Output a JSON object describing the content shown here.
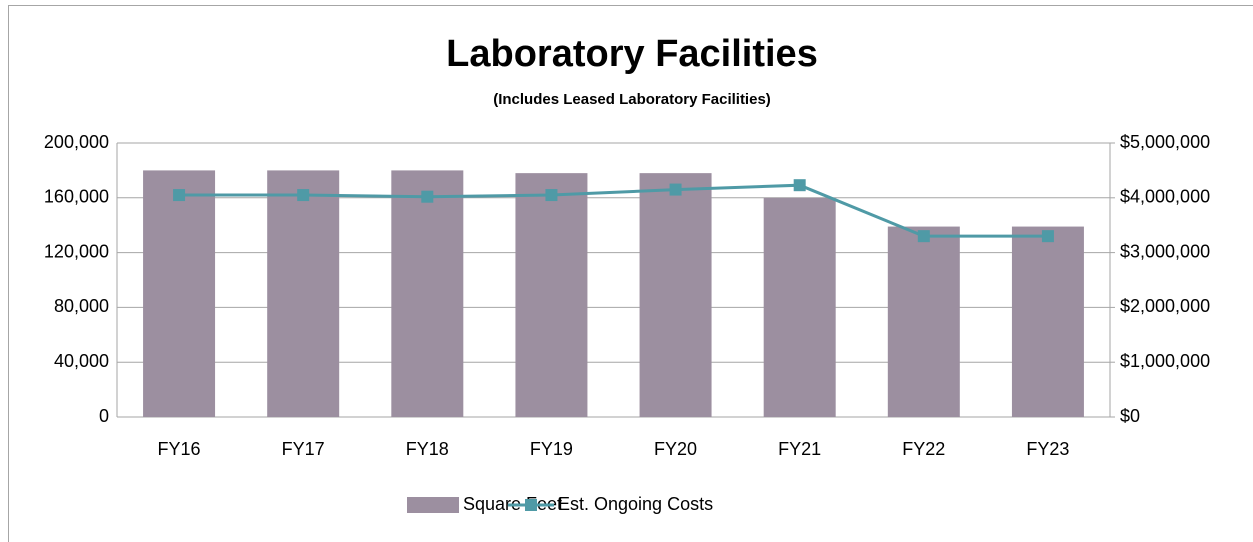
{
  "chart_data": {
    "type": "bar_line",
    "title": "Laboratory Facilities",
    "subtitle": "(Includes Leased Laboratory Facilities)",
    "categories": [
      "FY16",
      "FY17",
      "FY18",
      "FY19",
      "FY20",
      "FY21",
      "FY22",
      "FY23"
    ],
    "series": [
      {
        "name": "Square Feet",
        "type": "bar",
        "color": "#9c8fa0",
        "values": [
          180000,
          180000,
          180000,
          178000,
          178000,
          160000,
          139000,
          139000
        ]
      },
      {
        "name": "Est. Ongoing Costs",
        "type": "line",
        "axis": "y2",
        "color": "#4f9aa6",
        "values": [
          4050000,
          4050000,
          4020000,
          4050000,
          4150000,
          4230000,
          3300000,
          3300000
        ]
      }
    ],
    "ylim": [
      0,
      200000
    ],
    "yticks": [
      0,
      {
        "value": 40000,
        "label": "40,000"
      },
      {
        "value": 80000,
        "label": "80,000"
      },
      {
        "value": 120000,
        "label": "120,000"
      },
      {
        "value": 160000,
        "label": "160,000"
      },
      {
        "value": 200000,
        "label": "200,000"
      }
    ],
    "y2lim": [
      0,
      5000000
    ],
    "y2ticks": [
      {
        "value": 0,
        "label": "$0"
      },
      {
        "value": 1000000,
        "label": "$1,000,000"
      },
      {
        "value": 2000000,
        "label": "$2,000,000"
      },
      {
        "value": 3000000,
        "label": "$3,000,000"
      },
      {
        "value": 4000000,
        "label": "$4,000,000"
      },
      {
        "value": 5000000,
        "label": "$5,000,000"
      }
    ],
    "grid": true,
    "legend": "bottom"
  }
}
